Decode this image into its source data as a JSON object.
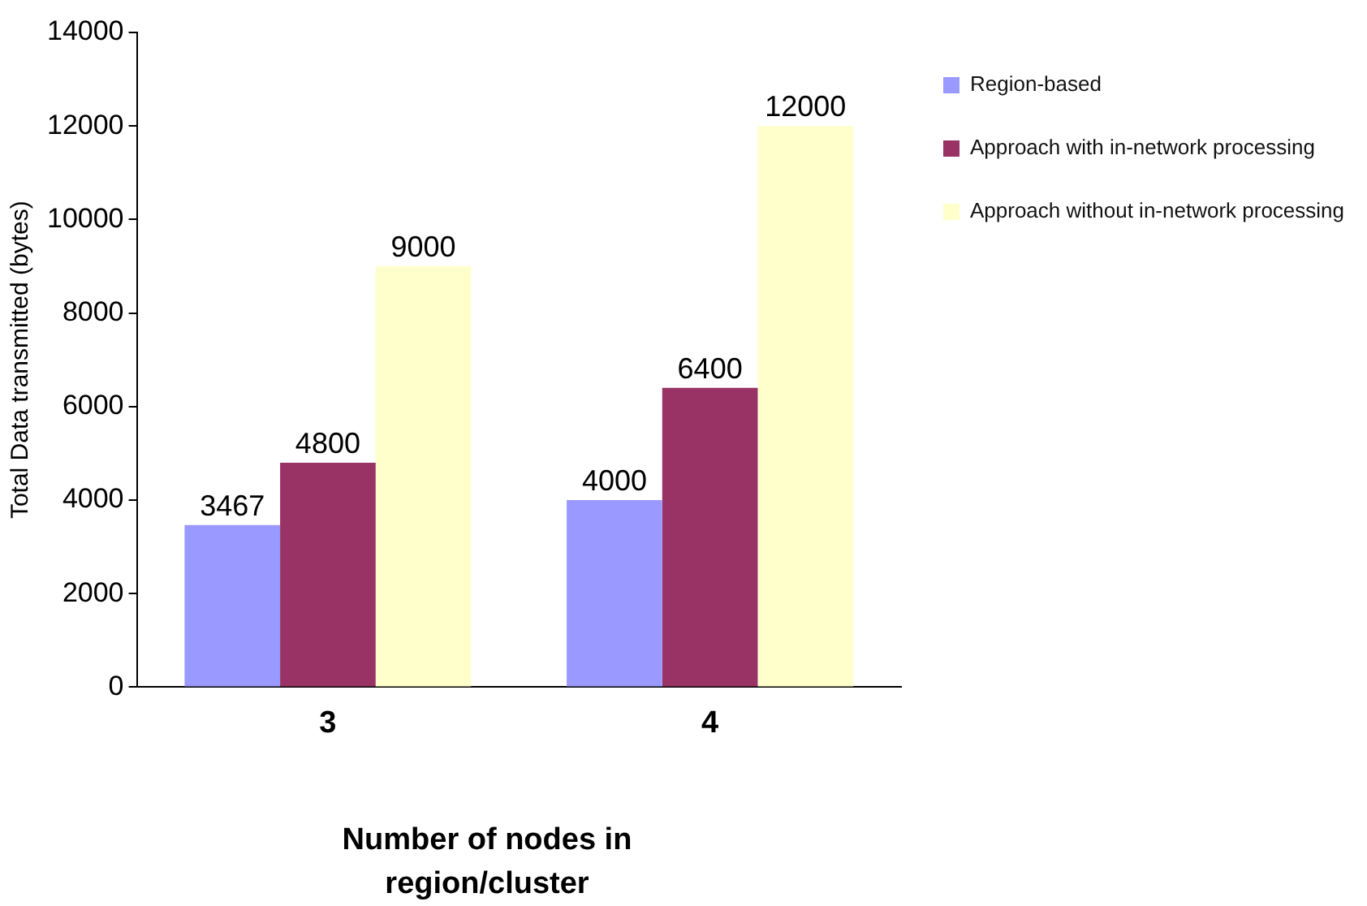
{
  "chart_data": {
    "type": "bar",
    "xlabel": "Number of nodes in region/cluster",
    "ylabel": "Total Data transmitted (bytes)",
    "categories": [
      "3",
      "4"
    ],
    "series": [
      {
        "name": "Region-based",
        "color": "#9999ff",
        "values": [
          3467,
          4000
        ]
      },
      {
        "name": "Approach with in-network processing",
        "color": "#993366",
        "values": [
          4800,
          6400
        ]
      },
      {
        "name": "Approach without in-network processing",
        "color": "#ffffcc",
        "values": [
          9000,
          12000
        ]
      }
    ],
    "ylim": [
      0,
      14000
    ],
    "yticks": [
      0,
      2000,
      4000,
      6000,
      8000,
      10000,
      12000,
      14000
    ],
    "grid": false,
    "legend": "top right",
    "data_labels": true
  }
}
